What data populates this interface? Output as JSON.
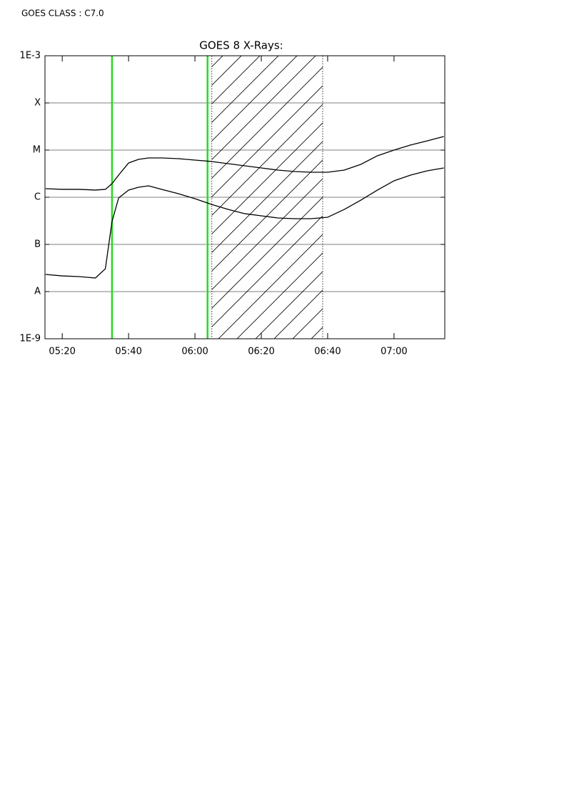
{
  "chart_data": {
    "type": "line",
    "header": "GOES CLASS : C7.0",
    "title": "GOES 8 X-Rays:",
    "x": [
      315,
      320,
      325,
      330,
      333,
      335,
      337,
      340,
      343,
      346,
      350,
      355,
      360,
      365,
      370,
      375,
      380,
      385,
      390,
      395,
      400,
      405,
      410,
      415,
      420,
      425,
      430,
      435
    ],
    "series": [
      {
        "color": "#000000",
        "values": [
          1.52e-06,
          1.47e-06,
          1.47e-06,
          1.42e-06,
          1.47e-06,
          1.94e-06,
          2.95e-06,
          5.33e-06,
          6.35e-06,
          6.81e-06,
          6.81e-06,
          6.58e-06,
          6.14e-06,
          5.73e-06,
          5.15e-06,
          4.64e-06,
          4.18e-06,
          3.77e-06,
          3.51e-06,
          3.39e-06,
          3.39e-06,
          3.77e-06,
          4.98e-06,
          7.57e-06,
          1e-05,
          1.28e-05,
          1.57e-05,
          1.94e-05
        ]
      },
      {
        "color": "#000000",
        "values": [
          2.31e-08,
          2.15e-08,
          2.08e-08,
          1.94e-08,
          3.05e-08,
          3.05e-07,
          9.66e-07,
          1.42e-06,
          1.63e-06,
          1.75e-06,
          1.47e-06,
          1.19e-06,
          9.33e-07,
          7.05e-07,
          5.52e-07,
          4.49e-07,
          4.04e-07,
          3.64e-07,
          3.51e-07,
          3.51e-07,
          3.77e-07,
          5.52e-07,
          8.69e-07,
          1.42e-06,
          2.23e-06,
          2.95e-06,
          3.64e-06,
          4.18e-06
        ]
      }
    ],
    "xlim": [
      314.8,
      435.3
    ],
    "xticks": [
      {
        "value": 320,
        "label": "05:20"
      },
      {
        "value": 340,
        "label": "05:40"
      },
      {
        "value": 360,
        "label": "06:00"
      },
      {
        "value": 380,
        "label": "06:20"
      },
      {
        "value": 400,
        "label": "06:40"
      },
      {
        "value": 420,
        "label": "07:00"
      }
    ],
    "ylim": [
      1e-09,
      0.001
    ],
    "yticks": [
      {
        "value": 1e-09,
        "label": "1E-9"
      },
      {
        "value": 1e-08,
        "label": "A"
      },
      {
        "value": 1e-07,
        "label": "B"
      },
      {
        "value": 1e-06,
        "label": "C"
      },
      {
        "value": 1e-05,
        "label": "M"
      },
      {
        "value": 0.0001,
        "label": "X"
      },
      {
        "value": 0.001,
        "label": "1E-3"
      }
    ],
    "log_y": true,
    "grid": true,
    "markers": [
      {
        "x": 335.0,
        "color": "#22dd22"
      },
      {
        "x": 363.8,
        "color": "#22dd22"
      }
    ],
    "shaded": [
      365.1,
      398.5
    ]
  }
}
